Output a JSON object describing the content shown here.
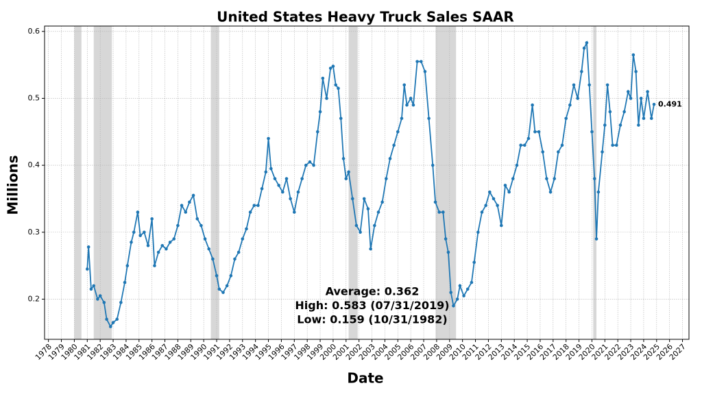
{
  "chart_data": {
    "type": "line",
    "title": "United States Heavy Truck Sales SAAR",
    "x_label": "Date",
    "y_label": "Millions",
    "xlim": [
      1977.7,
      2027.5
    ],
    "ylim": [
      0.14,
      0.608
    ],
    "xticks": [
      {
        "value": 1978,
        "label": "1978"
      },
      {
        "value": 1979,
        "label": "1979"
      },
      {
        "value": 1980,
        "label": "1980"
      },
      {
        "value": 1981,
        "label": "1981"
      },
      {
        "value": 1982,
        "label": "1982"
      },
      {
        "value": 1983,
        "label": "1983"
      },
      {
        "value": 1984,
        "label": "1984"
      },
      {
        "value": 1985,
        "label": "1985"
      },
      {
        "value": 1986,
        "label": "1986"
      },
      {
        "value": 1987,
        "label": "1987"
      },
      {
        "value": 1988,
        "label": "1988"
      },
      {
        "value": 1989,
        "label": "1989"
      },
      {
        "value": 1990,
        "label": "1990"
      },
      {
        "value": 1991,
        "label": "1991"
      },
      {
        "value": 1992,
        "label": "1992"
      },
      {
        "value": 1993,
        "label": "1993"
      },
      {
        "value": 1994,
        "label": "1994"
      },
      {
        "value": 1995,
        "label": "1995"
      },
      {
        "value": 1996,
        "label": "1996"
      },
      {
        "value": 1997,
        "label": "1997"
      },
      {
        "value": 1998,
        "label": "1998"
      },
      {
        "value": 1999,
        "label": "1999"
      },
      {
        "value": 2000,
        "label": "2000"
      },
      {
        "value": 2001,
        "label": "2001"
      },
      {
        "value": 2002,
        "label": "2002"
      },
      {
        "value": 2003,
        "label": "2003"
      },
      {
        "value": 2004,
        "label": "2004"
      },
      {
        "value": 2005,
        "label": "2005"
      },
      {
        "value": 2006,
        "label": "2006"
      },
      {
        "value": 2007,
        "label": "2007"
      },
      {
        "value": 2008,
        "label": "2008"
      },
      {
        "value": 2009,
        "label": "2009"
      },
      {
        "value": 2010,
        "label": "2010"
      },
      {
        "value": 2011,
        "label": "2011"
      },
      {
        "value": 2012,
        "label": "2012"
      },
      {
        "value": 2013,
        "label": "2013"
      },
      {
        "value": 2014,
        "label": "2014"
      },
      {
        "value": 2015,
        "label": "2015"
      },
      {
        "value": 2016,
        "label": "2016"
      },
      {
        "value": 2017,
        "label": "2017"
      },
      {
        "value": 2018,
        "label": "2018"
      },
      {
        "value": 2019,
        "label": "2019"
      },
      {
        "value": 2020,
        "label": "2020"
      },
      {
        "value": 2021,
        "label": "2021"
      },
      {
        "value": 2022,
        "label": "2022"
      },
      {
        "value": 2023,
        "label": "2023"
      },
      {
        "value": 2024,
        "label": "2024"
      },
      {
        "value": 2025,
        "label": "2025"
      },
      {
        "value": 2026,
        "label": "2026"
      },
      {
        "value": 2027,
        "label": "2027"
      }
    ],
    "yticks": [
      0.2,
      0.3,
      0.4,
      0.5,
      0.6
    ],
    "grid": true,
    "recessions": [
      [
        1980.0,
        1980.55
      ],
      [
        1981.5,
        1982.9
      ],
      [
        1990.55,
        1991.2
      ],
      [
        2001.2,
        2001.9
      ],
      [
        2007.92,
        2009.5
      ],
      [
        2020.1,
        2020.35
      ]
    ],
    "recession_color": "#d3d3d3",
    "x": [
      1981.0,
      1981.1,
      1981.3,
      1981.5,
      1981.8,
      1982.0,
      1982.3,
      1982.5,
      1982.8,
      1983.0,
      1983.3,
      1983.6,
      1983.9,
      1984.1,
      1984.4,
      1984.6,
      1984.9,
      1985.1,
      1985.4,
      1985.7,
      1986.0,
      1986.2,
      1986.5,
      1986.8,
      1987.1,
      1987.4,
      1987.7,
      1988.0,
      1988.3,
      1988.6,
      1988.9,
      1989.2,
      1989.5,
      1989.8,
      1990.1,
      1990.4,
      1990.7,
      1991.0,
      1991.2,
      1991.5,
      1991.8,
      1992.1,
      1992.4,
      1992.7,
      1993.0,
      1993.3,
      1993.6,
      1993.9,
      1994.2,
      1994.5,
      1994.8,
      1995.0,
      1995.2,
      1995.5,
      1995.8,
      1996.1,
      1996.4,
      1996.7,
      1997.0,
      1997.3,
      1997.6,
      1997.9,
      1998.2,
      1998.5,
      1998.8,
      1999.0,
      1999.2,
      1999.5,
      1999.8,
      2000.0,
      2000.2,
      2000.4,
      2000.6,
      2000.8,
      2001.0,
      2001.2,
      2001.5,
      2001.8,
      2002.1,
      2002.4,
      2002.7,
      2002.9,
      2003.2,
      2003.5,
      2003.8,
      2004.1,
      2004.4,
      2004.7,
      2005.0,
      2005.3,
      2005.5,
      2005.7,
      2006.0,
      2006.2,
      2006.5,
      2006.8,
      2007.1,
      2007.4,
      2007.7,
      2007.9,
      2008.2,
      2008.5,
      2008.7,
      2008.9,
      2009.1,
      2009.3,
      2009.6,
      2009.8,
      2010.1,
      2010.4,
      2010.7,
      2010.9,
      2011.2,
      2011.5,
      2011.8,
      2012.1,
      2012.4,
      2012.7,
      2013.0,
      2013.3,
      2013.6,
      2013.9,
      2014.2,
      2014.5,
      2014.8,
      2015.1,
      2015.4,
      2015.6,
      2015.9,
      2016.2,
      2016.5,
      2016.8,
      2017.1,
      2017.4,
      2017.7,
      2018.0,
      2018.3,
      2018.6,
      2018.9,
      2019.2,
      2019.4,
      2019.6,
      2019.8,
      2020.0,
      2020.2,
      2020.35,
      2020.5,
      2020.8,
      2021.0,
      2021.2,
      2021.4,
      2021.6,
      2021.9,
      2022.2,
      2022.5,
      2022.8,
      2023.0,
      2023.2,
      2023.4,
      2023.6,
      2023.8,
      2024.0,
      2024.3,
      2024.6,
      2024.8
    ],
    "series": [
      {
        "color": "#1f77b4",
        "values": [
          0.245,
          0.278,
          0.215,
          0.22,
          0.2,
          0.205,
          0.195,
          0.17,
          0.159,
          0.165,
          0.17,
          0.195,
          0.225,
          0.25,
          0.285,
          0.3,
          0.33,
          0.295,
          0.3,
          0.28,
          0.32,
          0.25,
          0.27,
          0.28,
          0.275,
          0.285,
          0.29,
          0.31,
          0.34,
          0.33,
          0.345,
          0.355,
          0.32,
          0.31,
          0.29,
          0.275,
          0.26,
          0.235,
          0.215,
          0.21,
          0.22,
          0.235,
          0.26,
          0.27,
          0.29,
          0.305,
          0.33,
          0.34,
          0.34,
          0.365,
          0.39,
          0.44,
          0.395,
          0.38,
          0.37,
          0.36,
          0.38,
          0.35,
          0.33,
          0.36,
          0.38,
          0.4,
          0.405,
          0.4,
          0.45,
          0.48,
          0.53,
          0.5,
          0.545,
          0.548,
          0.52,
          0.515,
          0.47,
          0.41,
          0.38,
          0.39,
          0.35,
          0.31,
          0.3,
          0.35,
          0.335,
          0.275,
          0.31,
          0.33,
          0.345,
          0.38,
          0.41,
          0.43,
          0.45,
          0.47,
          0.52,
          0.49,
          0.5,
          0.49,
          0.555,
          0.555,
          0.54,
          0.47,
          0.4,
          0.345,
          0.33,
          0.33,
          0.29,
          0.27,
          0.21,
          0.19,
          0.2,
          0.22,
          0.205,
          0.215,
          0.225,
          0.255,
          0.3,
          0.33,
          0.34,
          0.36,
          0.35,
          0.34,
          0.31,
          0.37,
          0.36,
          0.38,
          0.4,
          0.43,
          0.43,
          0.44,
          0.49,
          0.45,
          0.45,
          0.42,
          0.38,
          0.36,
          0.38,
          0.42,
          0.43,
          0.47,
          0.49,
          0.52,
          0.5,
          0.54,
          0.575,
          0.583,
          0.52,
          0.45,
          0.38,
          0.29,
          0.36,
          0.42,
          0.46,
          0.52,
          0.48,
          0.43,
          0.43,
          0.46,
          0.48,
          0.51,
          0.5,
          0.565,
          0.54,
          0.46,
          0.5,
          0.47,
          0.51,
          0.47,
          0.491
        ]
      }
    ],
    "last_label": "0.491",
    "annotations": [
      "Average: 0.362",
      "High: 0.583 (07/31/2019)",
      "Low: 0.159 (10/31/1982)"
    ]
  }
}
